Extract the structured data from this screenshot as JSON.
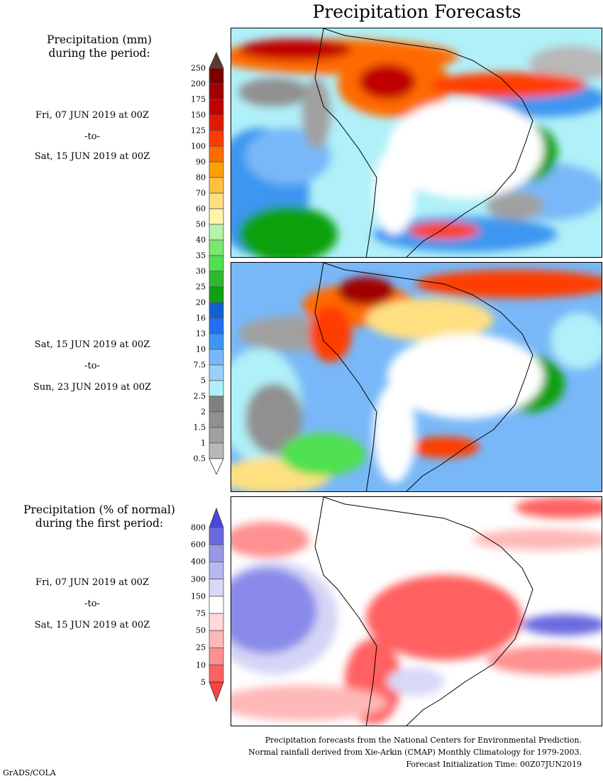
{
  "title": "Precipitation Forecasts",
  "amount_legend": {
    "heading_line1": "Precipitation (mm)",
    "heading_line2": "during the period:",
    "labels": [
      "250",
      "200",
      "175",
      "150",
      "125",
      "100",
      "90",
      "80",
      "70",
      "60",
      "50",
      "40",
      "35",
      "30",
      "25",
      "20",
      "16",
      "13",
      "10",
      "7.5",
      "5",
      "2.5",
      "2",
      "1.5",
      "1",
      "0.5"
    ],
    "colors": [
      "#7a0000",
      "#a00000",
      "#c00000",
      "#e01a00",
      "#ff3c00",
      "#ff6a00",
      "#ffa000",
      "#ffc040",
      "#ffe080",
      "#fff4a8",
      "#b8f4a8",
      "#78e870",
      "#50e050",
      "#30b830",
      "#10a010",
      "#1060d0",
      "#2070f0",
      "#3c96f0",
      "#78b8f8",
      "#98d0f8",
      "#b0f0f8",
      "#808080",
      "#909090",
      "#a0a0a0",
      "#b8b8b8"
    ],
    "top_arrow_color": "#5c3a30",
    "bottom_arrow_color": "#ffffff"
  },
  "period1": {
    "start": "Fri, 07 JUN 2019 at 00Z",
    "to": "-to-",
    "end": "Sat, 15 JUN 2019 at 00Z"
  },
  "period2": {
    "start": "Sat, 15 JUN 2019 at 00Z",
    "to": "-to-",
    "end": "Sun, 23 JUN 2019 at 00Z"
  },
  "percent_legend": {
    "heading_line1": "Precipitation (% of normal)",
    "heading_line2": "during the first period:",
    "labels": [
      "800",
      "600",
      "400",
      "300",
      "150",
      "75",
      "50",
      "25",
      "10",
      "5"
    ],
    "colors": [
      "#6a6ae0",
      "#9898e8",
      "#b8b8f0",
      "#d8d8f8",
      "#ffffff",
      "#ffd8d8",
      "#ffb8b8",
      "#ff9090",
      "#ff6060"
    ],
    "top_arrow_color": "#4848e0",
    "bottom_arrow_color": "#ff4040"
  },
  "period3": {
    "start": "Fri, 07 JUN 2019 at 00Z",
    "to": "-to-",
    "end": "Sat, 15 JUN 2019 at 00Z"
  },
  "footer": {
    "line1": "Precipitation forecasts from the National Centers for Environmental Prediction.",
    "line2": "Normal rainfall derived from Xie-Arkin (CMAP) Monthly Climatology for 1979-2003.",
    "line3": "Forecast Initialization Time: 00Z07JUN2019"
  },
  "credit": "GrADS/COLA"
}
